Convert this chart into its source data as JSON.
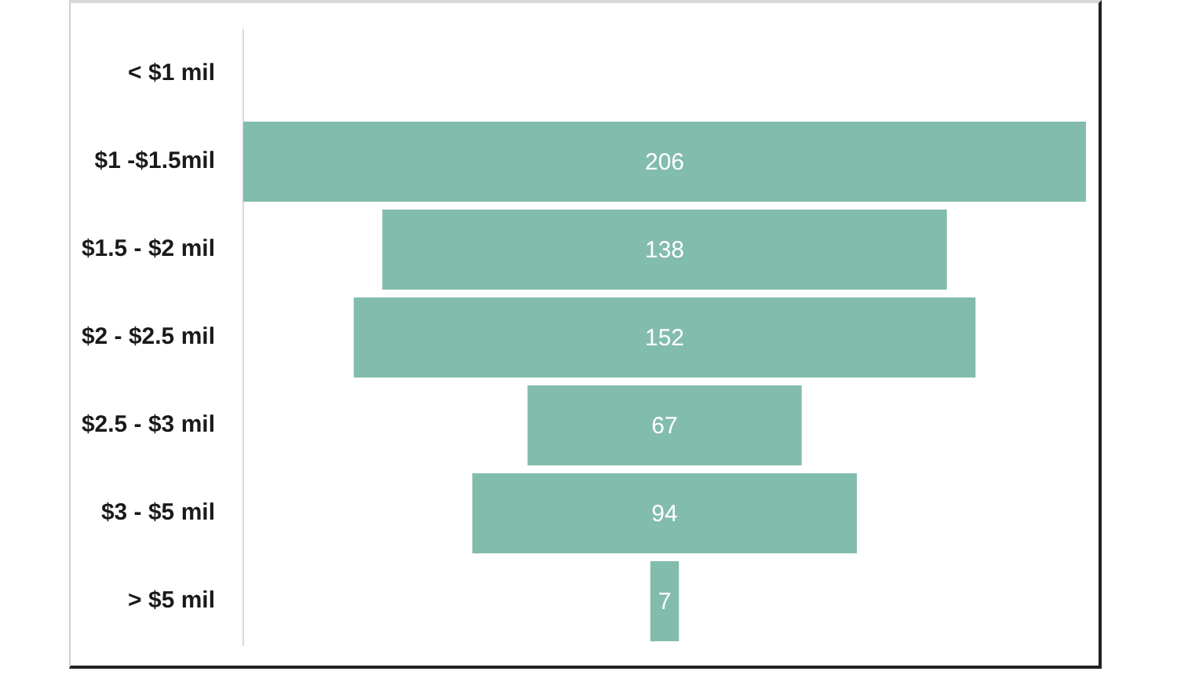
{
  "chart_data": {
    "type": "other",
    "categories": [
      "< $1 mil",
      "$1 -$1.5mil",
      "$1.5 - $2 mil",
      "$2 - $2.5 mil",
      "$2.5 - $3 mil",
      "$3 - $5 mil",
      "> $5 mil"
    ],
    "values": [
      null,
      206,
      138,
      152,
      67,
      94,
      7
    ],
    "color": "#82bcad",
    "data_labels": true
  }
}
